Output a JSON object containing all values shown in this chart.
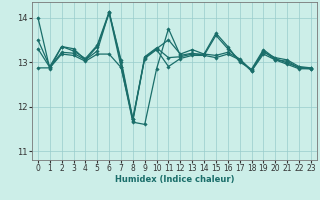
{
  "xlabel": "Humidex (Indice chaleur)",
  "background_color": "#cceee8",
  "grid_color": "#99cccc",
  "line_color": "#1a6e6a",
  "xlim": [
    -0.5,
    23.5
  ],
  "ylim": [
    10.8,
    14.35
  ],
  "yticks": [
    11,
    12,
    13,
    14
  ],
  "xticks": [
    0,
    1,
    2,
    3,
    4,
    5,
    6,
    7,
    8,
    9,
    10,
    11,
    12,
    13,
    14,
    15,
    16,
    17,
    18,
    19,
    20,
    21,
    22,
    23
  ],
  "lines": [
    [
      14.0,
      12.85,
      13.35,
      13.3,
      13.05,
      13.35,
      14.1,
      12.9,
      11.65,
      11.6,
      12.85,
      13.75,
      13.15,
      13.2,
      13.15,
      13.6,
      13.3,
      13.05,
      12.8,
      13.25,
      13.05,
      12.95,
      12.85,
      12.85
    ],
    [
      13.5,
      12.9,
      13.35,
      13.25,
      13.08,
      13.38,
      14.13,
      13.0,
      11.67,
      13.1,
      13.3,
      13.5,
      13.18,
      13.28,
      13.18,
      13.65,
      13.35,
      13.0,
      12.84,
      13.28,
      13.08,
      12.98,
      12.88,
      12.86
    ],
    [
      13.3,
      12.88,
      13.22,
      13.2,
      13.05,
      13.25,
      14.12,
      13.05,
      11.72,
      13.12,
      13.32,
      13.1,
      13.12,
      13.18,
      13.18,
      13.15,
      13.22,
      13.07,
      12.82,
      13.22,
      13.1,
      13.05,
      12.9,
      12.87
    ],
    [
      12.87,
      12.87,
      13.18,
      13.15,
      13.02,
      13.18,
      13.18,
      12.88,
      11.73,
      13.08,
      13.28,
      12.9,
      13.08,
      13.15,
      13.15,
      13.1,
      13.18,
      13.05,
      12.8,
      13.18,
      13.05,
      13.02,
      12.87,
      12.85
    ]
  ]
}
